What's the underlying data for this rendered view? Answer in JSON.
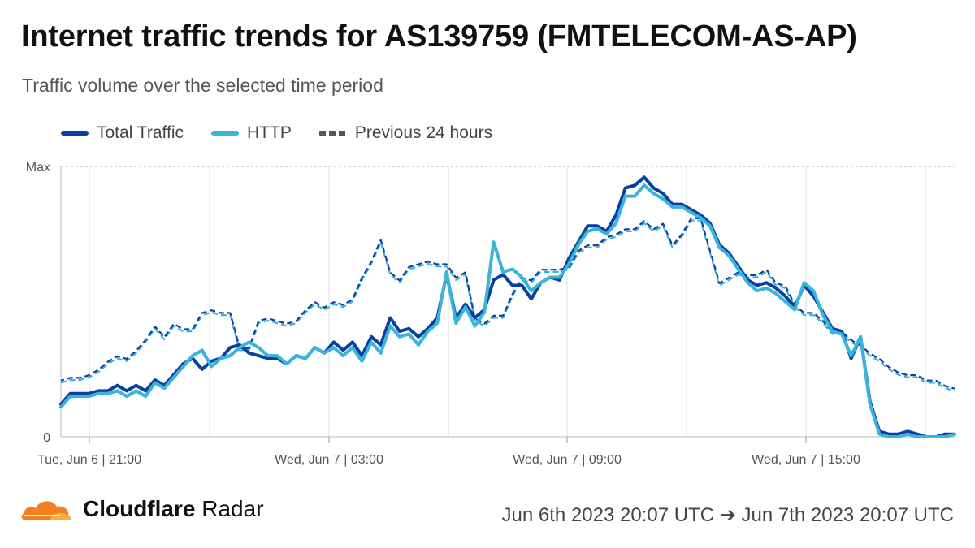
{
  "header": {
    "title": "Internet traffic trends for AS139759 (FMTELECOM-AS-AP)",
    "subtitle": "Traffic volume over the selected time period"
  },
  "footer": {
    "brand_bold": "Cloudflare",
    "brand_light": "Radar",
    "time_range": "Jun 6th 2023 20:07 UTC ➔ Jun 7th 2023 20:07 UTC"
  },
  "colors": {
    "total": "#0a3fa0",
    "http": "#3bb4dc",
    "grid": "#dddddd",
    "logo": "#f38020"
  },
  "chart_data": {
    "type": "line",
    "legend_position": "top-left",
    "grid": true,
    "y_tick_labels": [
      "Max",
      "0"
    ],
    "ylim": [
      0,
      100
    ],
    "x_tick_labels": [
      "Tue, Jun 6 | 21:00",
      "Wed, Jun 7 | 03:00",
      "Wed, Jun 7 | 09:00",
      "Wed, Jun 7 | 15:00"
    ],
    "series": [
      {
        "name": "Total Traffic",
        "style": "solid",
        "color": "#0a3fa0",
        "values": [
          12,
          16,
          16,
          16,
          17,
          17,
          19,
          17,
          19,
          17,
          21,
          19,
          23,
          27,
          29,
          25,
          28,
          29,
          33,
          34,
          31,
          30,
          29,
          29,
          27,
          30,
          29,
          33,
          31,
          35,
          32,
          35,
          30,
          37,
          34,
          44,
          39,
          40,
          37,
          40,
          44,
          60,
          44,
          49,
          44,
          47,
          58,
          60,
          56,
          56,
          51,
          57,
          59,
          58,
          66,
          72,
          78,
          78,
          76,
          82,
          92,
          93,
          96,
          92,
          90,
          86,
          86,
          84,
          82,
          79,
          71,
          68,
          63,
          58,
          56,
          57,
          55,
          52,
          48,
          56,
          52,
          46,
          40,
          39,
          29,
          37,
          13,
          2,
          1,
          1,
          2,
          1,
          0,
          0,
          1,
          1
        ]
      },
      {
        "name": "HTTP",
        "style": "solid",
        "color": "#3bb4dc",
        "values": [
          11,
          15,
          15,
          15,
          16,
          16,
          17,
          15,
          17,
          15,
          20,
          18,
          22,
          26,
          30,
          32,
          26,
          29,
          30,
          33,
          35,
          33,
          30,
          30,
          27,
          30,
          29,
          33,
          31,
          33,
          30,
          33,
          28,
          35,
          31,
          41,
          37,
          38,
          34,
          39,
          42,
          61,
          42,
          48,
          41,
          46,
          72,
          61,
          62,
          59,
          54,
          57,
          59,
          59,
          64,
          71,
          76,
          77,
          75,
          79,
          89,
          89,
          93,
          90,
          88,
          85,
          85,
          83,
          81,
          78,
          70,
          67,
          62,
          57,
          54,
          55,
          53,
          50,
          47,
          57,
          54,
          45,
          39,
          38,
          30,
          37,
          12,
          1,
          0,
          0,
          1,
          0,
          0,
          0,
          0,
          1
        ]
      },
      {
        "name": "Previous 24 hours",
        "style": "dashed",
        "color": "#0a3fa0",
        "values": [
          20,
          21,
          21,
          22,
          24,
          27,
          29,
          28,
          31,
          35,
          40,
          36,
          41,
          39,
          39,
          45,
          46,
          45,
          45,
          32,
          32,
          42,
          43,
          42,
          41,
          42,
          46,
          49,
          47,
          49,
          48,
          50,
          58,
          64,
          72,
          60,
          57,
          62,
          63,
          64,
          63,
          63,
          58,
          60,
          43,
          41,
          44,
          44,
          52,
          58,
          57,
          61,
          61,
          61,
          62,
          68,
          70,
          70,
          73,
          74,
          76,
          76,
          79,
          76,
          78,
          70,
          74,
          80,
          80,
          68,
          56,
          58,
          60,
          59,
          59,
          61,
          56,
          55,
          48,
          45,
          45,
          42,
          38,
          38,
          35,
          33,
          30,
          28,
          25,
          23,
          22,
          22,
          20,
          20,
          18,
          17
        ]
      }
    ]
  }
}
